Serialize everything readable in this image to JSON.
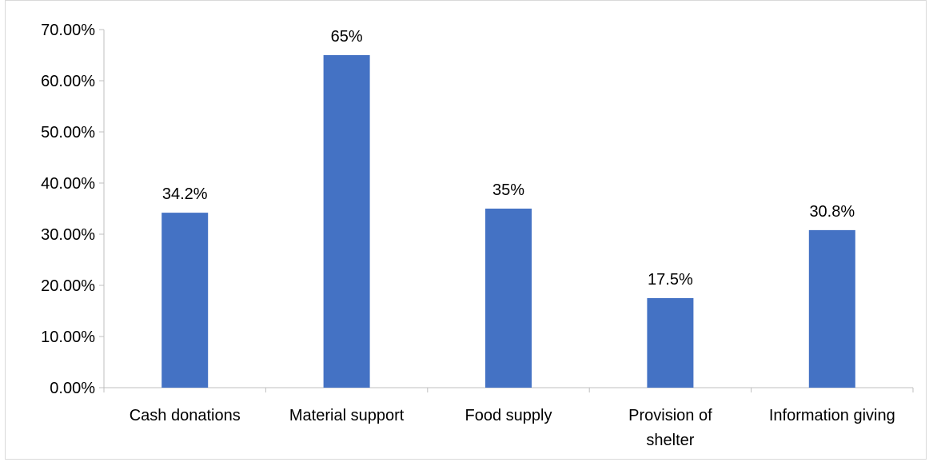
{
  "chart_data": {
    "type": "bar",
    "categories": [
      [
        "Cash donations"
      ],
      [
        "Material support"
      ],
      [
        "Food supply"
      ],
      [
        "Provision of",
        "shelter"
      ],
      [
        "Information giving"
      ]
    ],
    "values": [
      34.2,
      65,
      35,
      17.5,
      30.8
    ],
    "data_labels": [
      "34.2%",
      "65%",
      "35%",
      "17.5%",
      "30.8%"
    ],
    "y_ticks": [
      "0.00%",
      "10.00%",
      "20.00%",
      "30.00%",
      "40.00%",
      "50.00%",
      "60.00%",
      "70.00%"
    ],
    "ylim": [
      0,
      70
    ],
    "grid": false,
    "legend": "none",
    "title": "",
    "xlabel": "",
    "ylabel": "",
    "colors": {
      "bar": "#4472C4",
      "axis": "#bfbfbf"
    }
  }
}
